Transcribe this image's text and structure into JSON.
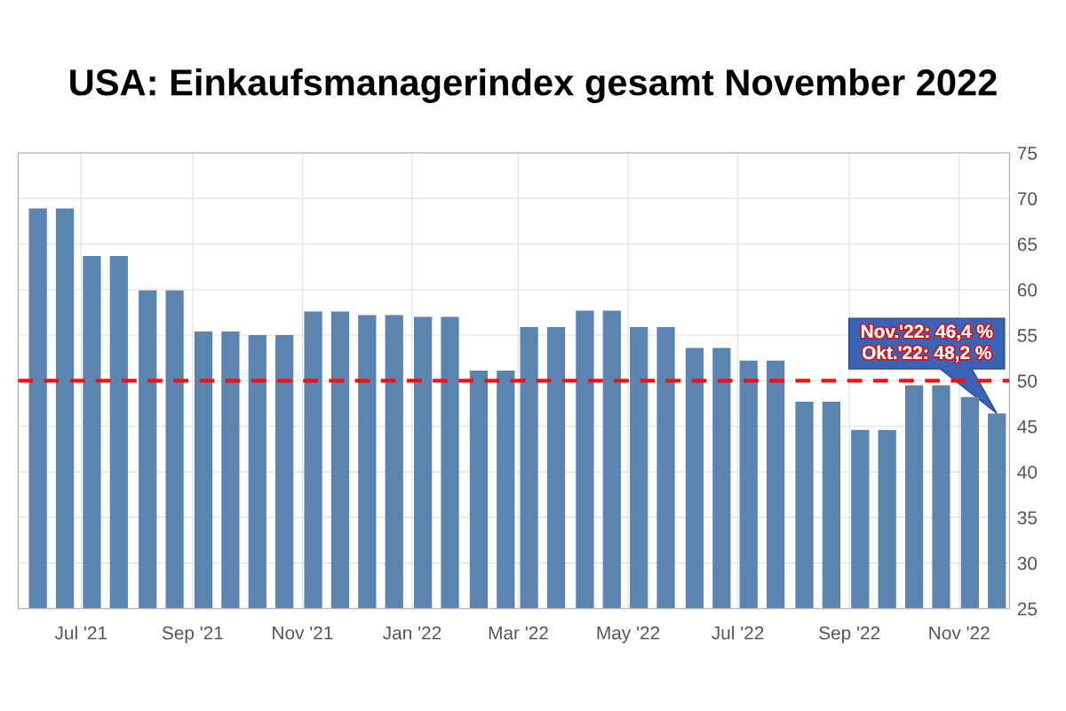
{
  "chart_data": {
    "type": "bar",
    "title": "USA: Einkaufsmanagerindex gesamt November 2022",
    "x": [
      "2021-06-07",
      "2021-06-22",
      "2021-07-07",
      "2021-07-22",
      "2021-08-07",
      "2021-08-22",
      "2021-09-07",
      "2021-09-22",
      "2021-10-07",
      "2021-10-22",
      "2021-11-07",
      "2021-11-22",
      "2021-12-07",
      "2021-12-22",
      "2022-01-07",
      "2022-01-22",
      "2022-02-07",
      "2022-02-22",
      "2022-03-07",
      "2022-03-22",
      "2022-04-07",
      "2022-04-22",
      "2022-05-07",
      "2022-05-22",
      "2022-06-07",
      "2022-06-22",
      "2022-07-07",
      "2022-07-22",
      "2022-08-07",
      "2022-08-22",
      "2022-09-07",
      "2022-09-22",
      "2022-10-07",
      "2022-10-22",
      "2022-11-07",
      "2022-11-22"
    ],
    "values": [
      68.9,
      68.9,
      63.7,
      63.7,
      59.9,
      59.9,
      55.4,
      55.4,
      55.0,
      55.0,
      57.6,
      57.6,
      57.2,
      57.2,
      57.0,
      57.0,
      51.1,
      51.1,
      55.9,
      55.9,
      57.7,
      57.7,
      55.9,
      55.9,
      53.6,
      53.6,
      52.2,
      52.2,
      47.7,
      47.7,
      44.6,
      44.6,
      49.5,
      49.5,
      48.2,
      46.4
    ],
    "color": "#5b84b1",
    "xlim": [
      "2021-05-27",
      "2022-11-29"
    ],
    "xticks": [
      {
        "value": "2021-07-01",
        "label": "Jul '21"
      },
      {
        "value": "2021-09-01",
        "label": "Sep '21"
      },
      {
        "value": "2021-11-01",
        "label": "Nov '21"
      },
      {
        "value": "2022-01-01",
        "label": "Jan '22"
      },
      {
        "value": "2022-03-01",
        "label": "Mar '22"
      },
      {
        "value": "2022-05-01",
        "label": "May '22"
      },
      {
        "value": "2022-07-01",
        "label": "Jul '22"
      },
      {
        "value": "2022-09-01",
        "label": "Sep '22"
      },
      {
        "value": "2022-11-01",
        "label": "Nov '22"
      }
    ],
    "ylim": [
      25,
      75
    ],
    "yticks": [
      25,
      30,
      35,
      40,
      45,
      50,
      55,
      60,
      65,
      70,
      75
    ],
    "grid": true,
    "ref_lines": [
      {
        "axis": "y",
        "value": 50,
        "color": "#ee1111",
        "line_style": "dashed"
      }
    ],
    "annotations": [
      {
        "text": "Nov.'22: 46,4 %\nOkt.'22: 48,2 %",
        "x": "2022-11-22",
        "y": 46.4
      }
    ]
  }
}
